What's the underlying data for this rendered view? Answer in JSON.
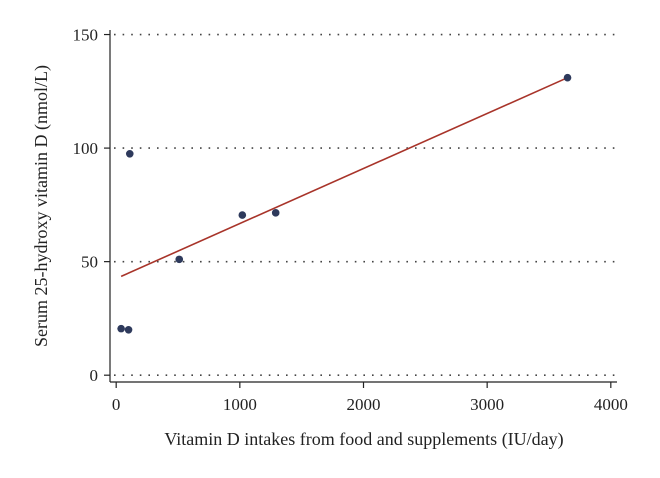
{
  "chart_data": {
    "type": "scatter",
    "title": "",
    "xlabel": "Vitamin D intakes from food and supplements (IU/day)",
    "ylabel": "Serum 25-hydroxy vitamin D (nmol/L)",
    "xlim": [
      -50,
      4050
    ],
    "ylim": [
      -3,
      152
    ],
    "x_ticks": [
      0,
      1000,
      2000,
      3000,
      4000
    ],
    "y_ticks": [
      0,
      50,
      100,
      150
    ],
    "x_tick_labels": [
      "0",
      "1000",
      "2000",
      "3000",
      "4000"
    ],
    "y_tick_labels": [
      "0",
      "50",
      "100",
      "150"
    ],
    "grid": "horizontal dotted",
    "points": [
      {
        "x": 40,
        "y": 20.5
      },
      {
        "x": 100,
        "y": 20
      },
      {
        "x": 110,
        "y": 97.5
      },
      {
        "x": 510,
        "y": 51
      },
      {
        "x": 1020,
        "y": 70.5
      },
      {
        "x": 1290,
        "y": 71.5
      },
      {
        "x": 3650,
        "y": 131
      }
    ],
    "fit_line": {
      "x": [
        40,
        3650
      ],
      "y": [
        43.5,
        131
      ]
    },
    "point_color": "#2e3a5c",
    "fit_color": "#a8342a"
  }
}
